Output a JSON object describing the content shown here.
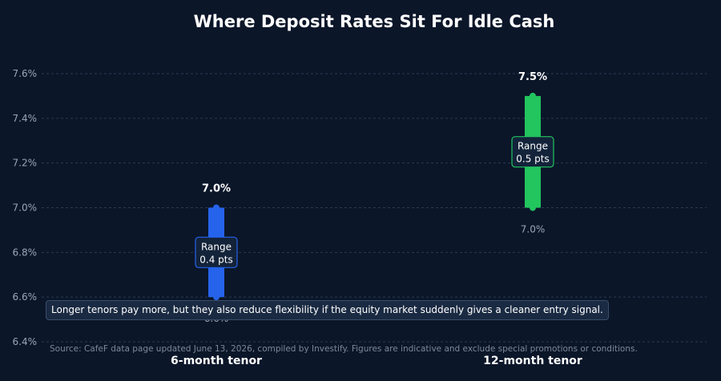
{
  "chart_data": {
    "type": "range-bar",
    "title": "Where Deposit Rates Sit For Idle Cash",
    "ylim": [
      6.4,
      7.6
    ],
    "yticks": [
      6.4,
      6.6,
      6.8,
      7.0,
      7.2,
      7.4,
      7.6
    ],
    "ytick_labels": [
      "6.4%",
      "6.6%",
      "6.8%",
      "7.0%",
      "7.2%",
      "7.4%",
      "7.6%"
    ],
    "grid": true,
    "categories": [
      "6-month tenor",
      "12-month tenor"
    ],
    "low": [
      6.6,
      7.0
    ],
    "high": [
      7.0,
      7.5
    ],
    "low_labels": [
      "6.6%",
      "7.0%"
    ],
    "high_labels": [
      "7.0%",
      "7.5%"
    ],
    "range_labels": [
      [
        "Range",
        "0.4 pts"
      ],
      [
        "Range",
        "0.5 pts"
      ]
    ],
    "colors": [
      "#2563eb",
      "#22c55e"
    ],
    "annotation": "Longer tenors pay more, but they also reduce flexibility if the equity market suddenly gives a cleaner entry signal.",
    "source": "Source: CafeF data page updated June 13, 2026, compiled by Investify. Figures are indicative and exclude special promotions or conditions."
  }
}
